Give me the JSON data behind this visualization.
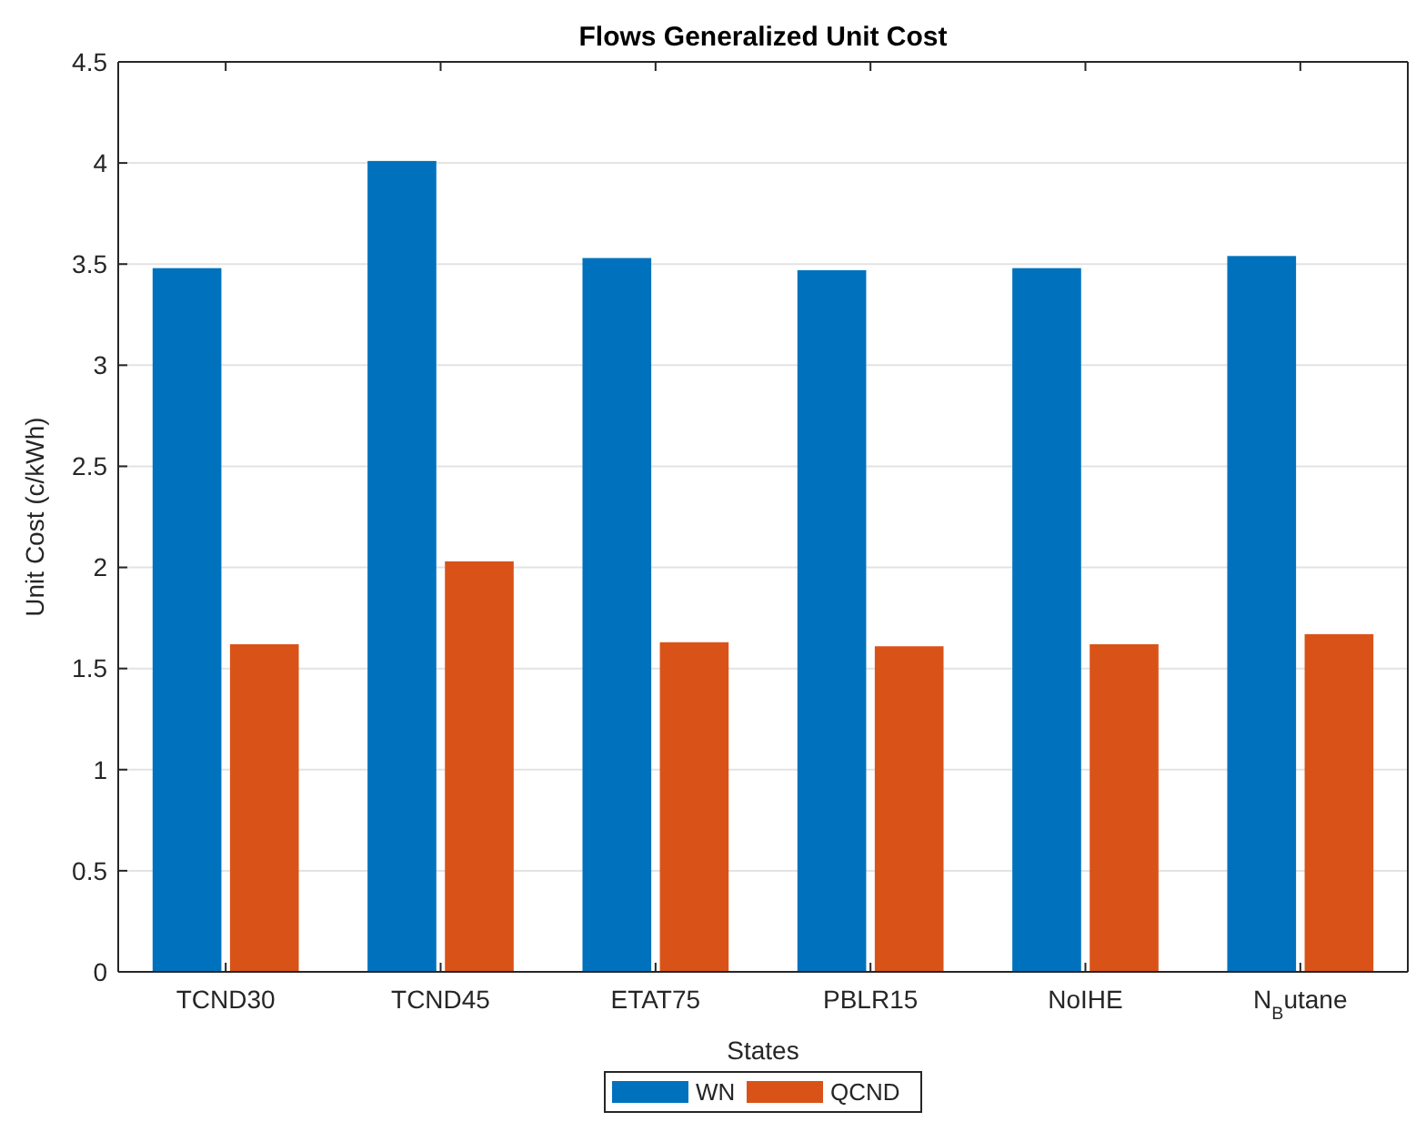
{
  "chart_data": {
    "type": "bar",
    "title": "Flows Generalized Unit Cost",
    "xlabel": "States",
    "ylabel": "Unit Cost (c/kWh)",
    "categories": [
      "TCND30",
      "TCND45",
      "ETAT75",
      "PBLR15",
      "NoIHE",
      "N$_{B}$utane"
    ],
    "series": [
      {
        "name": "WN",
        "color": "#0072bd",
        "values": [
          3.48,
          4.01,
          3.53,
          3.47,
          3.48,
          3.54
        ]
      },
      {
        "name": "QCND",
        "color": "#d95319",
        "values": [
          1.62,
          2.03,
          1.63,
          1.61,
          1.62,
          1.67
        ]
      }
    ],
    "ylim": [
      0,
      4.5
    ],
    "yticks": [
      0,
      0.5,
      1,
      1.5,
      2,
      2.5,
      3,
      3.5,
      4,
      4.5
    ],
    "grid": "y",
    "legend": "bottom"
  }
}
